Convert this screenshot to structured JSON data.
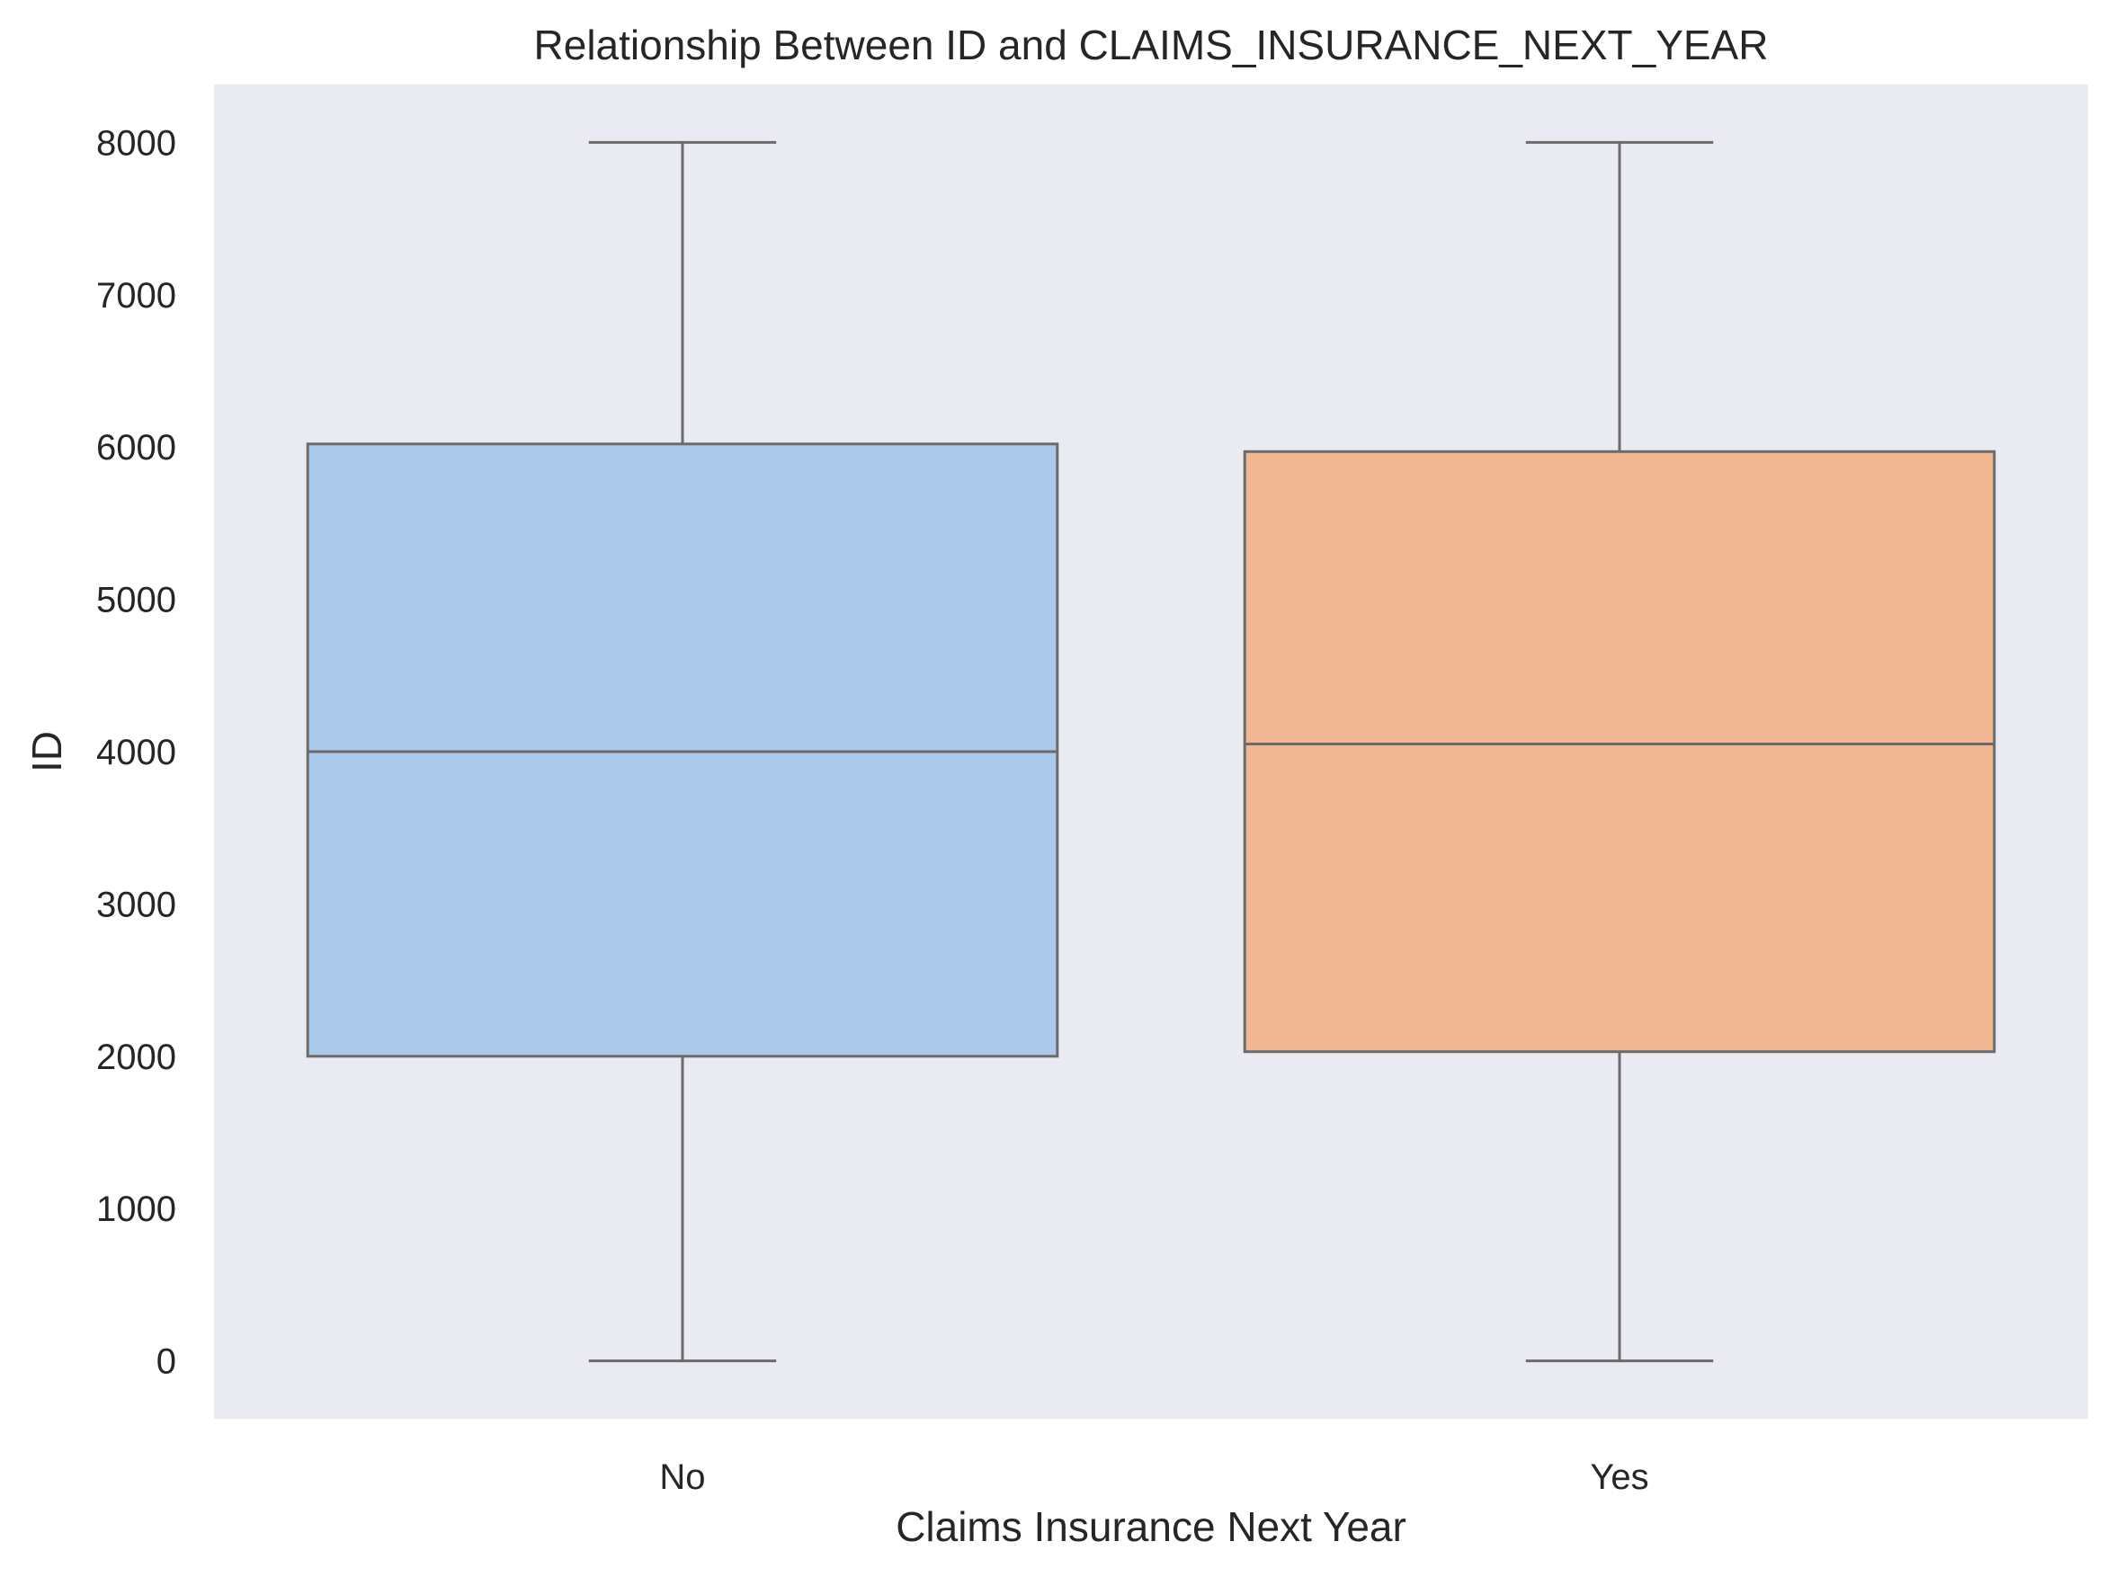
{
  "chart_data": {
    "type": "box",
    "title": "Relationship Between ID and CLAIMS_INSURANCE_NEXT_YEAR",
    "xlabel": "Claims Insurance Next Year",
    "ylabel": "ID",
    "categories": [
      "No",
      "Yes"
    ],
    "ylim": [
      -380,
      8380
    ],
    "yticks": [
      0,
      1000,
      2000,
      3000,
      4000,
      5000,
      6000,
      7000,
      8000
    ],
    "grid": false,
    "background_color": "#eaeaf2",
    "edge_color": "#6b6b6b",
    "boxes": [
      {
        "category": "No",
        "whisker_low": 0,
        "q1": 2000,
        "median": 4000,
        "q3": 6020,
        "whisker_high": 8000,
        "color": "#abc9eb"
      },
      {
        "category": "Yes",
        "whisker_low": 0,
        "q1": 2030,
        "median": 4050,
        "q3": 5970,
        "whisker_high": 8000,
        "color": "#f0b792"
      }
    ]
  }
}
